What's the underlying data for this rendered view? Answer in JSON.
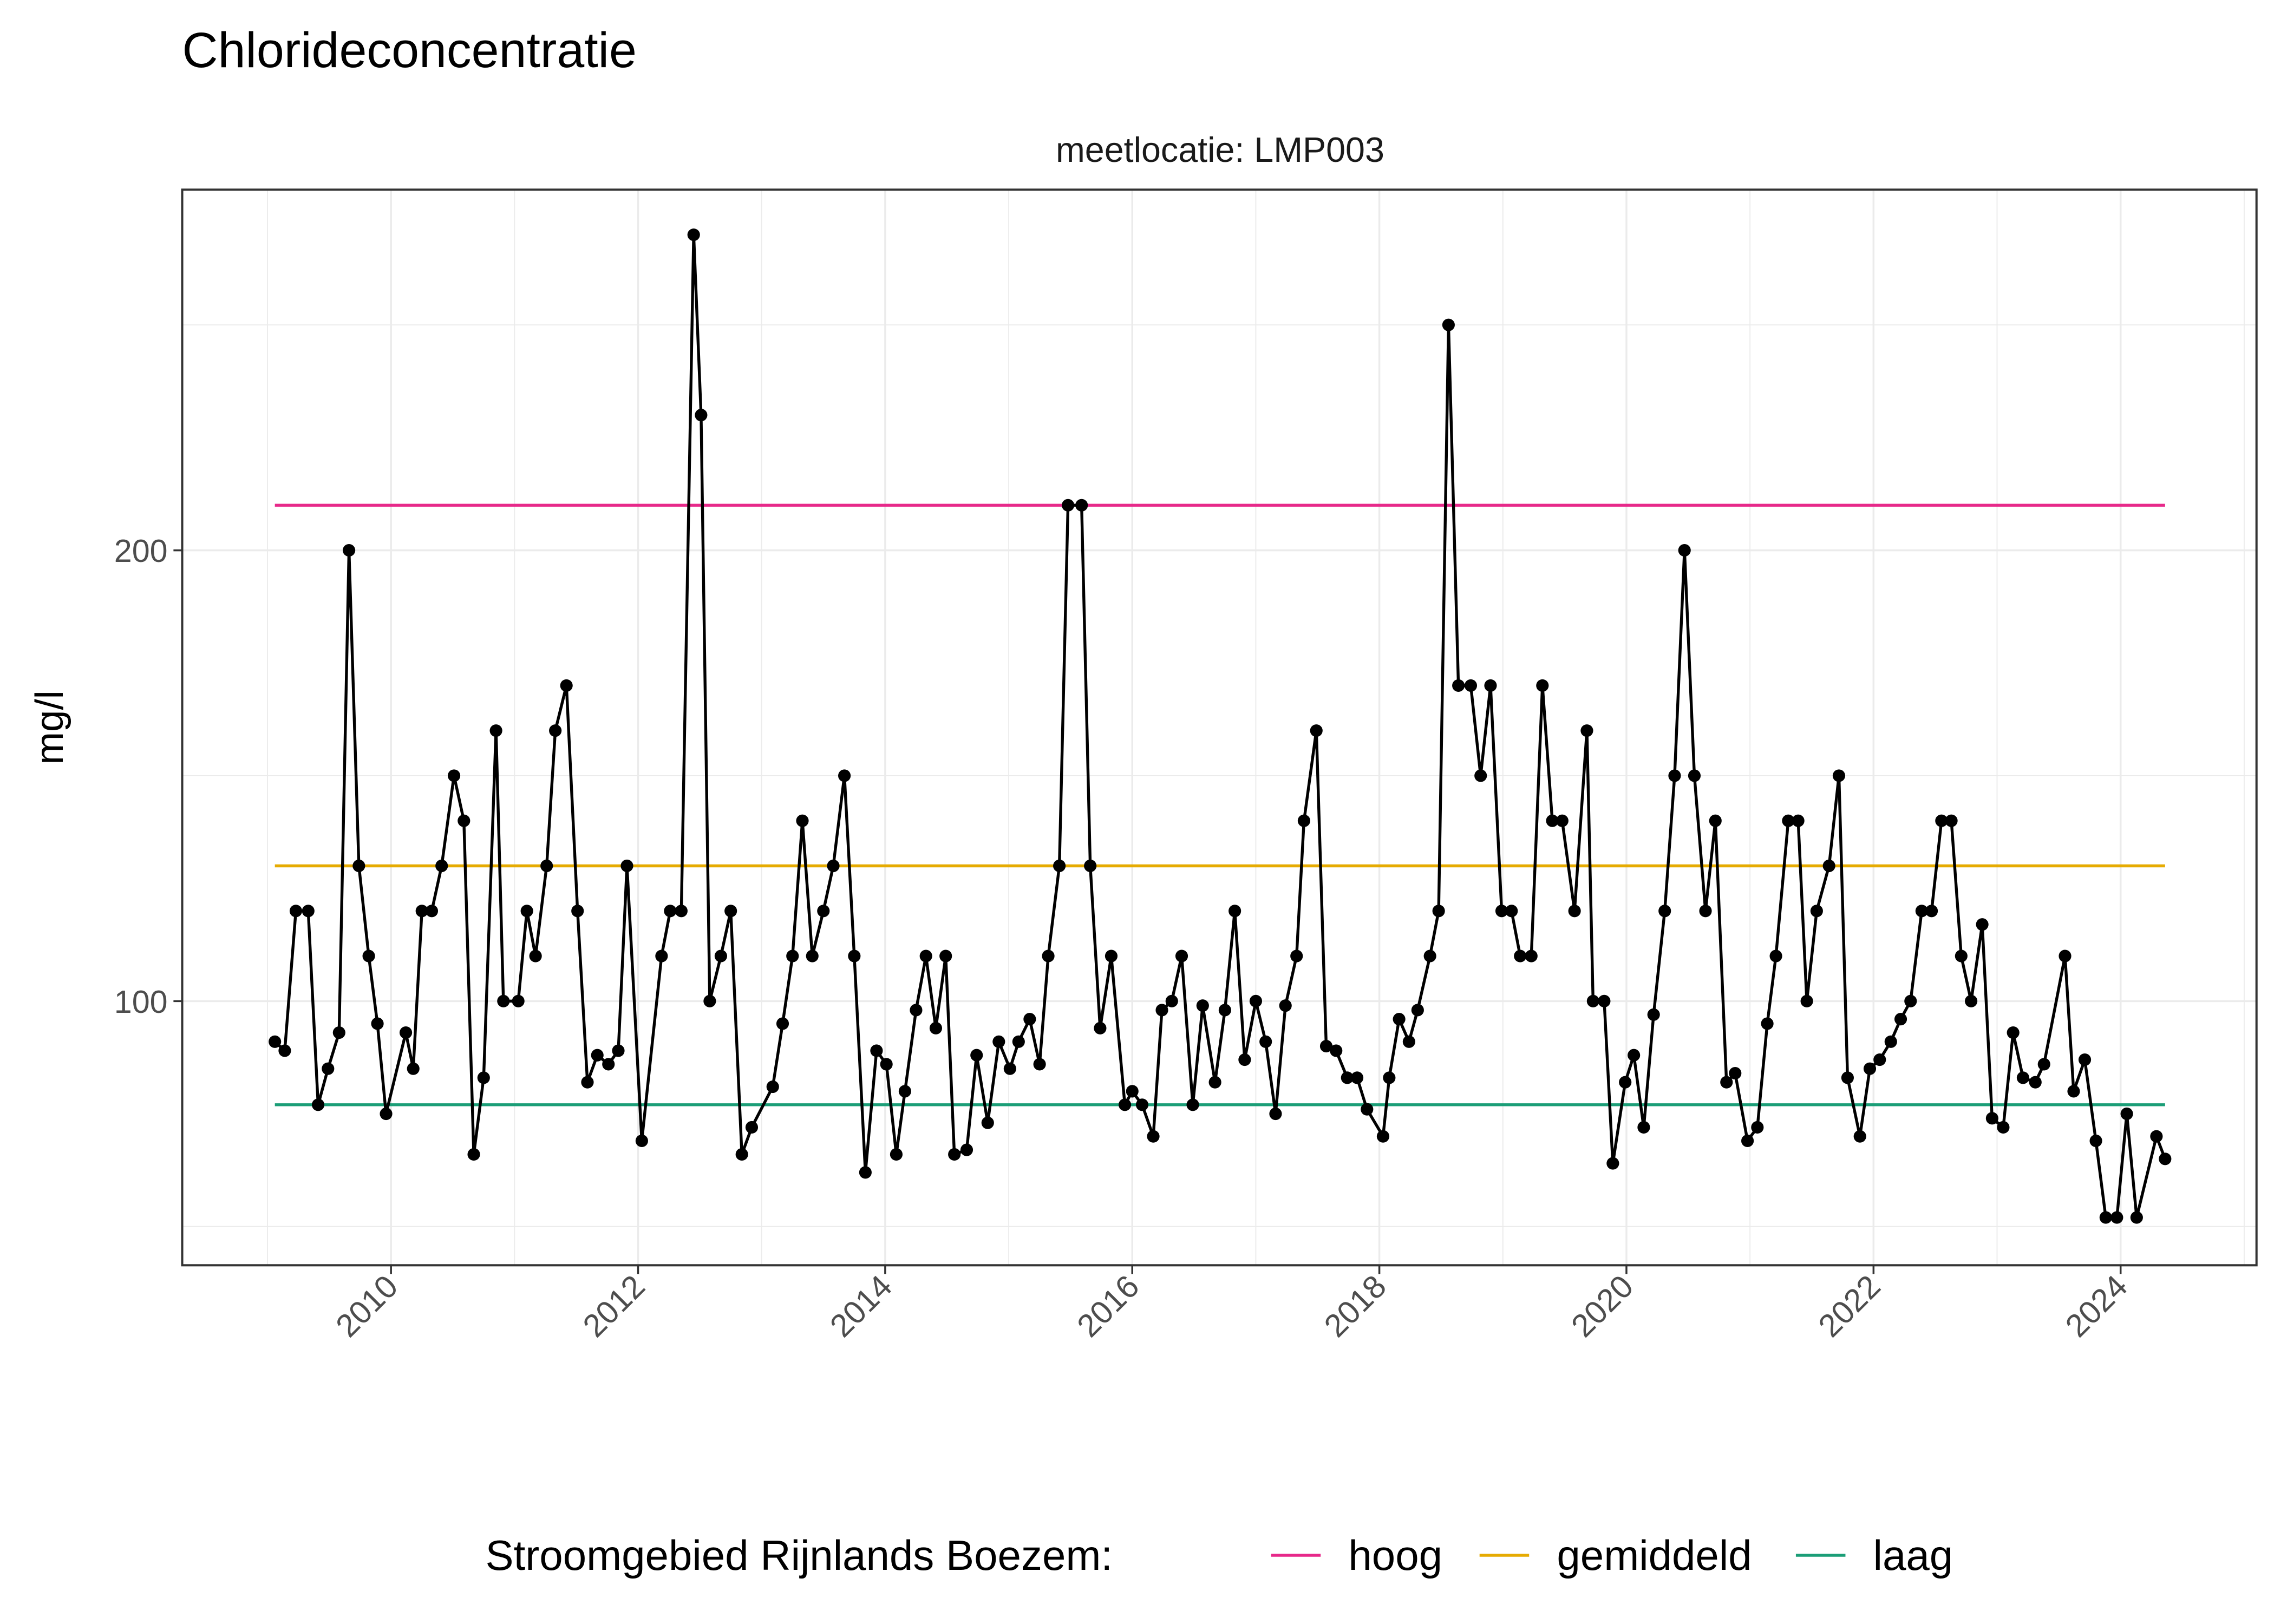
{
  "chart_data": {
    "type": "line",
    "title": "Chlorideconcentratie",
    "facet_label": "meetlocatie: LMP003",
    "xlabel": "",
    "ylabel": "mg/l",
    "xlim": [
      2008.31,
      2025.1
    ],
    "ylim": [
      41.4,
      280
    ],
    "x_ticks": [
      "2010",
      "2012",
      "2014",
      "2016",
      "2018",
      "2020",
      "2022",
      "2024"
    ],
    "y_ticks": [
      "100",
      "200"
    ],
    "grid": true,
    "legend": {
      "title": "Stroomgebied Rijnlands Boezem:",
      "placement": "bottom",
      "entries": [
        "hoog",
        "gemiddeld",
        "laag"
      ]
    },
    "reference_lines": [
      {
        "name": "hoog",
        "value": 210,
        "color": "#e7298a"
      },
      {
        "name": "gemiddeld",
        "value": 130,
        "color": "#e6ab02"
      },
      {
        "name": "laag",
        "value": 77,
        "color": "#1b9e77"
      }
    ],
    "series": [
      {
        "color": "#000000",
        "x": [
          2009.06,
          2009.14,
          2009.23,
          2009.33,
          2009.41,
          2009.49,
          2009.58,
          2009.66,
          2009.74,
          2009.82,
          2009.89,
          2009.96,
          2010.12,
          2010.18,
          2010.25,
          2010.33,
          2010.41,
          2010.51,
          2010.59,
          2010.67,
          2010.75,
          2010.85,
          2010.91,
          2011.03,
          2011.1,
          2011.17,
          2011.26,
          2011.33,
          2011.42,
          2011.51,
          2011.59,
          2011.67,
          2011.76,
          2011.84,
          2011.91,
          2012.03,
          2012.19,
          2012.26,
          2012.35,
          2012.45,
          2012.51,
          2012.58,
          2012.67,
          2012.75,
          2012.84,
          2012.92,
          2013.09,
          2013.17,
          2013.25,
          2013.33,
          2013.41,
          2013.5,
          2013.58,
          2013.67,
          2013.75,
          2013.84,
          2013.93,
          2014.01,
          2014.09,
          2014.16,
          2014.25,
          2014.33,
          2014.41,
          2014.49,
          2014.56,
          2014.66,
          2014.74,
          2014.83,
          2014.92,
          2015.01,
          2015.08,
          2015.17,
          2015.25,
          2015.32,
          2015.41,
          2015.48,
          2015.59,
          2015.66,
          2015.74,
          2015.83,
          2015.94,
          2016.0,
          2016.08,
          2016.17,
          2016.24,
          2016.32,
          2016.4,
          2016.49,
          2016.57,
          2016.67,
          2016.75,
          2016.83,
          2016.91,
          2017.0,
          2017.08,
          2017.16,
          2017.24,
          2017.33,
          2017.39,
          2017.49,
          2017.57,
          2017.65,
          2017.74,
          2017.82,
          2017.9,
          2018.03,
          2018.08,
          2018.16,
          2018.24,
          2018.31,
          2018.41,
          2018.48,
          2018.56,
          2018.64,
          2018.74,
          2018.82,
          2018.9,
          2018.99,
          2019.07,
          2019.14,
          2019.23,
          2019.32,
          2019.4,
          2019.48,
          2019.58,
          2019.68,
          2019.73,
          2019.82,
          2019.89,
          2019.99,
          2020.06,
          2020.14,
          2020.22,
          2020.31,
          2020.39,
          2020.47,
          2020.55,
          2020.64,
          2020.72,
          2020.81,
          2020.88,
          2020.98,
          2021.06,
          2021.14,
          2021.21,
          2021.31,
          2021.39,
          2021.46,
          2021.54,
          2021.64,
          2021.72,
          2021.79,
          2021.89,
          2021.97,
          2022.05,
          2022.14,
          2022.22,
          2022.3,
          2022.39,
          2022.47,
          2022.55,
          2022.63,
          2022.71,
          2022.79,
          2022.88,
          2022.96,
          2023.05,
          2023.13,
          2023.21,
          2023.31,
          2023.38,
          2023.55,
          2023.62,
          2023.71,
          2023.8,
          2023.88,
          2023.97,
          2024.05,
          2024.13,
          2024.29,
          2024.36
        ],
        "y": [
          91,
          89,
          120,
          120,
          77,
          85,
          93,
          200,
          130,
          110,
          95,
          75,
          93,
          85,
          120,
          120,
          130,
          150,
          140,
          66,
          83,
          160,
          100,
          100,
          120,
          110,
          130,
          160,
          170,
          120,
          82,
          88,
          86,
          89,
          130,
          69,
          110,
          120,
          120,
          270,
          230,
          100,
          110,
          120,
          66,
          72,
          81,
          95,
          110,
          140,
          110,
          120,
          130,
          150,
          110,
          62,
          89,
          86,
          66,
          80,
          98,
          110,
          94,
          110,
          66,
          67,
          88,
          73,
          91,
          85,
          91,
          96,
          86,
          110,
          130,
          210,
          210,
          130,
          94,
          110,
          77,
          80,
          77,
          70,
          98,
          100,
          110,
          77,
          99,
          82,
          98,
          120,
          87,
          100,
          91,
          75,
          99,
          110,
          140,
          160,
          90,
          89,
          83,
          83,
          76,
          70,
          83,
          96,
          91,
          98,
          110,
          120,
          250,
          170,
          170,
          150,
          170,
          120,
          120,
          110,
          110,
          170,
          140,
          140,
          120,
          160,
          100,
          100,
          64,
          82,
          88,
          72,
          97,
          120,
          150,
          200,
          150,
          120,
          140,
          82,
          84,
          69,
          72,
          95,
          110,
          140,
          140,
          100,
          120,
          130,
          150,
          83,
          70,
          85,
          87,
          91,
          96,
          100,
          120,
          120,
          140,
          140,
          110,
          100,
          117,
          74,
          72,
          93,
          83,
          82,
          86,
          110,
          80,
          87,
          69,
          52,
          52,
          75,
          52,
          70,
          65
        ]
      }
    ]
  }
}
